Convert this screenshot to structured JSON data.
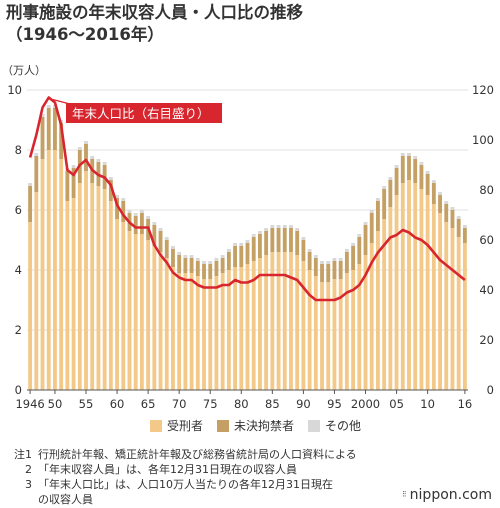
{
  "title_line1": "刑事施設の年末収容人員・人口比の推移",
  "title_line2": "（1946〜2016年）",
  "chart_data": {
    "type": "bar",
    "stacked": true,
    "left_unit": "（万人）",
    "left_ylim": [
      0,
      10
    ],
    "left_ticks": [
      "0",
      "2",
      "4",
      "6",
      "8",
      "10"
    ],
    "right_ylim": [
      0,
      120
    ],
    "right_ticks": [
      "0",
      "20",
      "40",
      "60",
      "80",
      "100",
      "120"
    ],
    "x_tick_labels": [
      "1946",
      "50",
      "55",
      "60",
      "65",
      "70",
      "75",
      "80",
      "85",
      "90",
      "95",
      "2000",
      "05",
      "10",
      "16"
    ],
    "x_tick_years": [
      1946,
      1950,
      1955,
      1960,
      1965,
      1970,
      1975,
      1980,
      1985,
      1990,
      1995,
      2000,
      2005,
      2010,
      2016
    ],
    "years": [
      1946,
      1947,
      1948,
      1949,
      1950,
      1951,
      1952,
      1953,
      1954,
      1955,
      1956,
      1957,
      1958,
      1959,
      1960,
      1961,
      1962,
      1963,
      1964,
      1965,
      1966,
      1967,
      1968,
      1969,
      1970,
      1971,
      1972,
      1973,
      1974,
      1975,
      1976,
      1977,
      1978,
      1979,
      1980,
      1981,
      1982,
      1983,
      1984,
      1985,
      1986,
      1987,
      1988,
      1989,
      1990,
      1991,
      1992,
      1993,
      1994,
      1995,
      1996,
      1997,
      1998,
      1999,
      2000,
      2001,
      2002,
      2003,
      2004,
      2005,
      2006,
      2007,
      2008,
      2009,
      2010,
      2011,
      2012,
      2013,
      2014,
      2015,
      2016
    ],
    "series": [
      {
        "name": "受刑者",
        "color": "#f3c98a",
        "values": [
          5.6,
          6.6,
          7.7,
          8.0,
          8.0,
          7.7,
          6.3,
          6.4,
          6.9,
          7.3,
          6.9,
          6.8,
          6.7,
          6.3,
          5.7,
          5.6,
          5.3,
          5.2,
          5.2,
          5.0,
          4.8,
          4.6,
          4.4,
          4.1,
          3.9,
          3.9,
          3.9,
          3.8,
          3.7,
          3.7,
          3.8,
          3.9,
          4.0,
          4.1,
          4.1,
          4.2,
          4.3,
          4.4,
          4.5,
          4.6,
          4.6,
          4.6,
          4.6,
          4.5,
          4.3,
          4.0,
          3.8,
          3.6,
          3.6,
          3.7,
          3.7,
          3.9,
          4.0,
          4.2,
          4.5,
          4.9,
          5.3,
          5.7,
          6.1,
          6.5,
          6.9,
          7.0,
          6.9,
          6.7,
          6.5,
          6.2,
          5.9,
          5.6,
          5.4,
          5.1,
          4.9
        ]
      },
      {
        "name": "未決拘禁者",
        "color": "#c4a064",
        "values": [
          1.2,
          1.2,
          1.4,
          1.4,
          1.4,
          1.2,
          1.0,
          1.0,
          1.1,
          0.9,
          0.8,
          0.8,
          0.8,
          0.7,
          0.7,
          0.7,
          0.6,
          0.6,
          0.7,
          0.7,
          0.7,
          0.7,
          0.6,
          0.6,
          0.6,
          0.5,
          0.5,
          0.5,
          0.5,
          0.5,
          0.5,
          0.5,
          0.6,
          0.7,
          0.7,
          0.7,
          0.8,
          0.8,
          0.8,
          0.8,
          0.8,
          0.8,
          0.8,
          0.8,
          0.7,
          0.6,
          0.6,
          0.6,
          0.6,
          0.6,
          0.6,
          0.7,
          0.8,
          0.9,
          1.0,
          1.0,
          1.0,
          1.0,
          0.9,
          0.9,
          0.9,
          0.8,
          0.8,
          0.8,
          0.7,
          0.7,
          0.6,
          0.6,
          0.6,
          0.6,
          0.5
        ]
      },
      {
        "name": "その他",
        "color": "#d8d8d8",
        "values": [
          0.1,
          0.1,
          0.1,
          0.1,
          0.1,
          0.1,
          0.1,
          0.1,
          0.1,
          0.1,
          0.1,
          0.1,
          0.1,
          0.1,
          0.1,
          0.1,
          0.1,
          0.1,
          0.1,
          0.1,
          0.1,
          0.1,
          0.1,
          0.1,
          0.1,
          0.1,
          0.1,
          0.1,
          0.1,
          0.1,
          0.1,
          0.1,
          0.1,
          0.1,
          0.1,
          0.1,
          0.1,
          0.1,
          0.1,
          0.1,
          0.1,
          0.1,
          0.1,
          0.1,
          0.1,
          0.1,
          0.1,
          0.1,
          0.1,
          0.1,
          0.1,
          0.1,
          0.1,
          0.1,
          0.1,
          0.1,
          0.1,
          0.1,
          0.1,
          0.1,
          0.1,
          0.1,
          0.1,
          0.1,
          0.1,
          0.1,
          0.1,
          0.1,
          0.1,
          0.1,
          0.1
        ]
      }
    ],
    "line": {
      "name": "年末人口比（右目盛り）",
      "axis": "right",
      "color": "#d7262e",
      "values": [
        93,
        102,
        113,
        117,
        115,
        106,
        88,
        86,
        90,
        92,
        88,
        86,
        85,
        82,
        74,
        70,
        67,
        65,
        65,
        65,
        58,
        54,
        51,
        47,
        45,
        44,
        44,
        42,
        41,
        41,
        41,
        42,
        42,
        44,
        43,
        43,
        44,
        46,
        46,
        46,
        46,
        46,
        45,
        44,
        41,
        38,
        36,
        36,
        36,
        36,
        37,
        39,
        40,
        42,
        46,
        51,
        55,
        58,
        61,
        62,
        64,
        63,
        61,
        60,
        58,
        55,
        52,
        50,
        48,
        46,
        44
      ]
    },
    "annotation": "年末人口比（右目盛り）"
  },
  "legend": [
    {
      "label": "受刑者",
      "color": "#f3c98a"
    },
    {
      "label": "未決拘禁者",
      "color": "#c4a064"
    },
    {
      "label": "その他",
      "color": "#d8d8d8"
    }
  ],
  "notes": [
    {
      "num": "注1",
      "text": "行刑統計年報、矯正統計年報及び総務省統計局の人口資料による"
    },
    {
      "num": "2",
      "text": "「年末収容人員」は、各年12月31日現在の収容人員"
    },
    {
      "num": "3",
      "text": "「年末人口比」は、人口10万人当たりの各年12月31日現在"
    },
    {
      "num": "",
      "text": "の収容人員"
    }
  ],
  "brand": "nippon.com"
}
